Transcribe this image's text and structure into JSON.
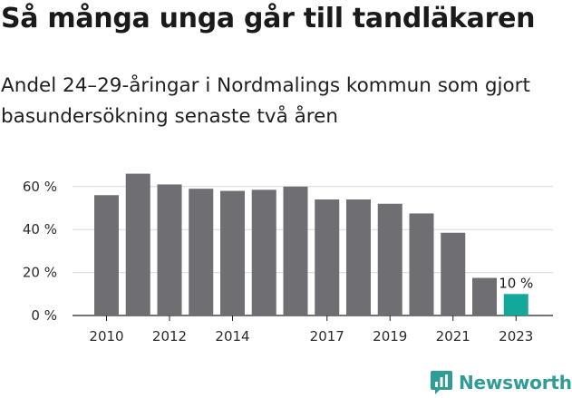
{
  "title": "Så många unga går till tandläkaren",
  "subtitle": "Andel 24–29-åringar i Nordmalings kommun som gjort basundersökning senaste två åren",
  "brand": {
    "name": "Newsworthy",
    "color": "#2f9c95"
  },
  "colors": {
    "bar": "#6e6e73",
    "highlight": "#14a89b",
    "grid": "#d9d9d9",
    "axis": "#222222"
  },
  "chart_data": {
    "type": "bar",
    "categories": [
      "2010",
      "2011",
      "2012",
      "2013",
      "2014",
      "2015",
      "2016",
      "2017",
      "2018",
      "2019",
      "2020",
      "2021",
      "2022",
      "2023"
    ],
    "values": [
      56,
      66,
      61,
      59,
      58,
      58.5,
      60,
      54,
      54,
      52,
      47.5,
      38.5,
      17.5,
      10
    ],
    "highlight_index": 13,
    "data_labels": [
      {
        "index": 13,
        "text": "10 %"
      }
    ],
    "x_tick_labels": [
      "2010",
      "2012",
      "2014",
      "2017",
      "2019",
      "2021",
      "2023"
    ],
    "y_ticks": [
      0,
      20,
      40,
      60
    ],
    "y_tick_labels": [
      "0 %",
      "20 %",
      "40 %",
      "60 %"
    ],
    "ylim": [
      0,
      68
    ],
    "grid": true,
    "legend": "none",
    "title": "Så många unga går till tandläkaren",
    "xlabel": "",
    "ylabel": ""
  }
}
